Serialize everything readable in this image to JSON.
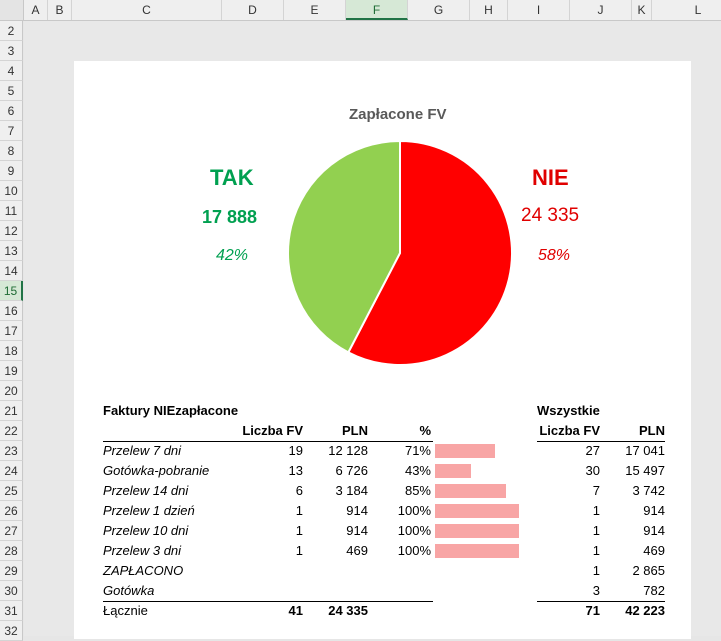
{
  "columns": [
    "A",
    "B",
    "C",
    "D",
    "E",
    "F",
    "G",
    "H",
    "I",
    "J",
    "K",
    "L"
  ],
  "selected_column": "F",
  "rows": [
    "2",
    "3",
    "4",
    "5",
    "6",
    "7",
    "8",
    "9",
    "10",
    "11",
    "12",
    "13",
    "14",
    "15",
    "16",
    "17",
    "18",
    "19",
    "20",
    "21",
    "22",
    "23",
    "24",
    "25",
    "26",
    "27",
    "28",
    "29",
    "30",
    "31",
    "32"
  ],
  "selected_row": "15",
  "chart_data": {
    "type": "pie",
    "title": "Zapłacone FV",
    "slices": [
      {
        "label": "NIE",
        "value": 24335,
        "percent": 58,
        "color": "#ff0000"
      },
      {
        "label": "TAK",
        "value": 17888,
        "percent": 42,
        "color": "#92d050"
      }
    ]
  },
  "tak": {
    "label": "TAK",
    "value": "17 888",
    "percent": "42%",
    "color": "#00a050"
  },
  "nie": {
    "label": "NIE",
    "value": "24 335",
    "percent": "58%",
    "color": "#e00000"
  },
  "table_left": {
    "title": "Faktury NIEzapłacone",
    "headers": {
      "count": "Liczba FV",
      "pln": "PLN",
      "pct": "%"
    },
    "rows": [
      {
        "name": "Przelew 7 dni",
        "count": "19",
        "pln": "12 128",
        "pct": "71%",
        "pct_value": 71
      },
      {
        "name": "Gotówka-pobranie",
        "count": "13",
        "pln": "6 726",
        "pct": "43%",
        "pct_value": 43
      },
      {
        "name": "Przelew 14 dni",
        "count": "6",
        "pln": "3 184",
        "pct": "85%",
        "pct_value": 85
      },
      {
        "name": "Przelew 1 dzień",
        "count": "1",
        "pln": "914",
        "pct": "100%",
        "pct_value": 100
      },
      {
        "name": "Przelew 10 dni",
        "count": "1",
        "pln": "914",
        "pct": "100%",
        "pct_value": 100
      },
      {
        "name": "Przelew 3 dni",
        "count": "1",
        "pln": "469",
        "pct": "100%",
        "pct_value": 100
      },
      {
        "name": "ZAPŁACONO",
        "count": "",
        "pln": "",
        "pct": "",
        "pct_value": 0
      },
      {
        "name": "Gotówka",
        "count": "",
        "pln": "",
        "pct": "",
        "pct_value": 0
      }
    ],
    "total": {
      "name": "Łącznie",
      "count": "41",
      "pln": "24 335"
    }
  },
  "table_right": {
    "title": "Wszystkie",
    "headers": {
      "count": "Liczba FV",
      "pln": "PLN"
    },
    "rows": [
      {
        "count": "27",
        "pln": "17 041"
      },
      {
        "count": "30",
        "pln": "15 497"
      },
      {
        "count": "7",
        "pln": "3 742"
      },
      {
        "count": "1",
        "pln": "914"
      },
      {
        "count": "1",
        "pln": "914"
      },
      {
        "count": "1",
        "pln": "469"
      },
      {
        "count": "1",
        "pln": "2 865"
      },
      {
        "count": "3",
        "pln": "782"
      }
    ],
    "total": {
      "count": "71",
      "pln": "42 223"
    }
  }
}
